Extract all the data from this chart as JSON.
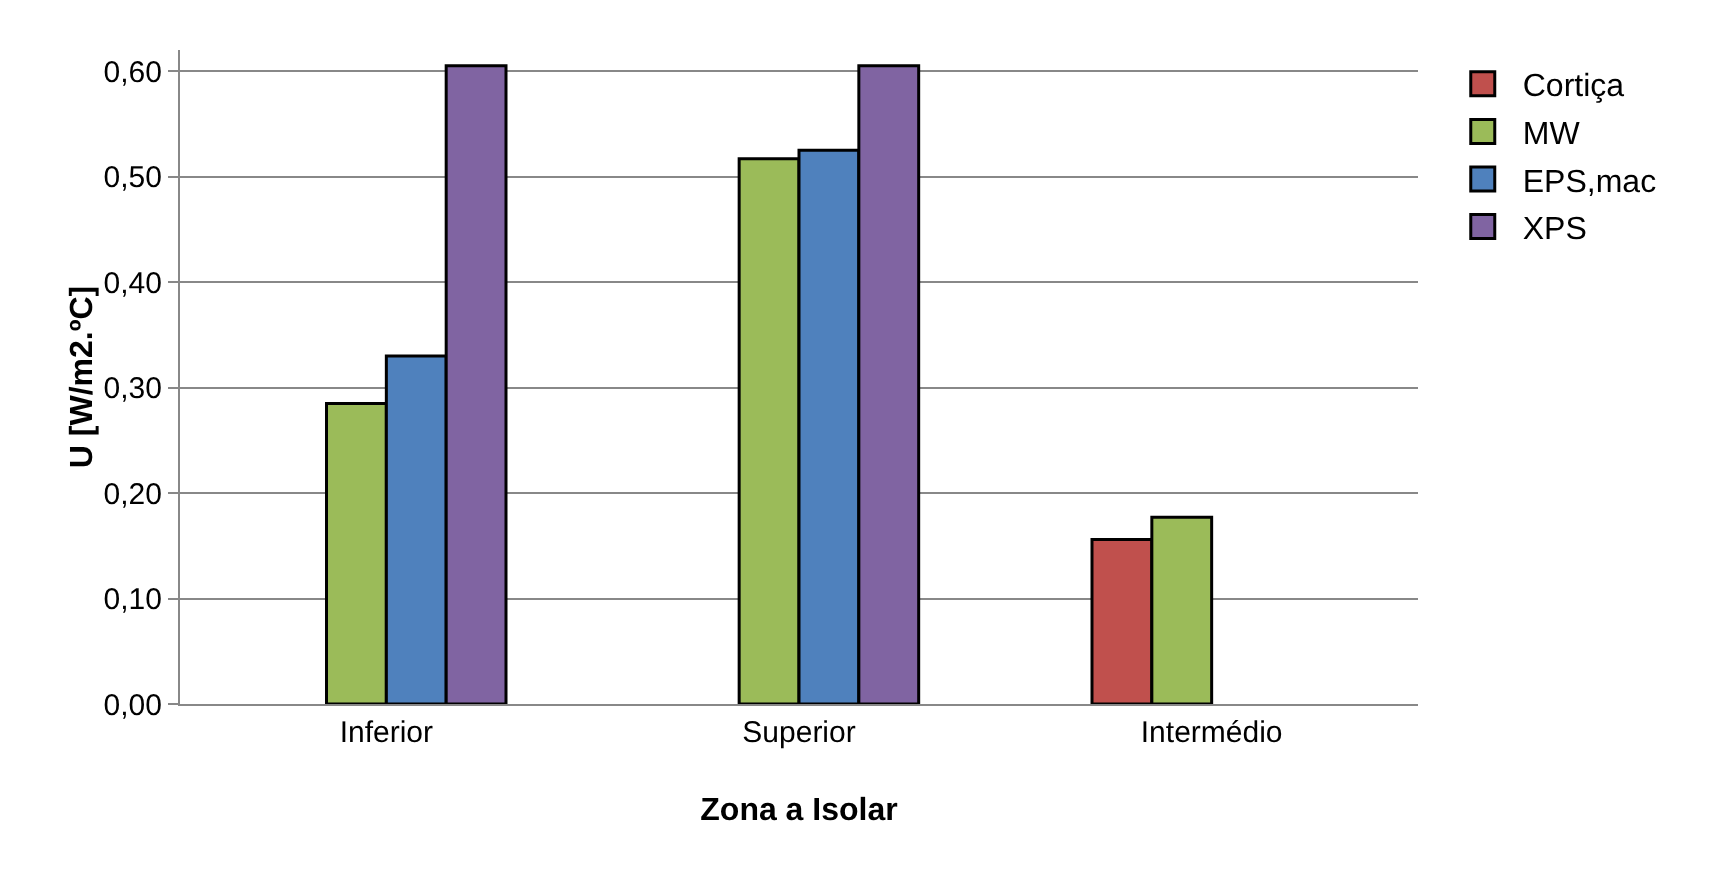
{
  "chart_data": {
    "type": "bar",
    "xlabel": "Zona a Isolar",
    "ylabel": "U [W/m2.ºC]",
    "categories": [
      "Inferior",
      "Superior",
      "Intermédio"
    ],
    "series": [
      {
        "name": "Cortiça",
        "color": "#c0504d",
        "values": [
          null,
          null,
          0.156
        ]
      },
      {
        "name": "MW",
        "color": "#9bbb59",
        "values": [
          0.285,
          0.517,
          0.177
        ]
      },
      {
        "name": "EPS,mac",
        "color": "#4f81bd",
        "values": [
          0.33,
          0.525,
          null
        ]
      },
      {
        "name": "XPS",
        "color": "#8064a2",
        "values": [
          0.605,
          0.605,
          null
        ]
      }
    ],
    "ylim": [
      0,
      0.62
    ],
    "yticks": [
      {
        "value": 0,
        "label": "0,00"
      },
      {
        "value": 0.1,
        "label": "0,10"
      },
      {
        "value": 0.2,
        "label": "0,20"
      },
      {
        "value": 0.3,
        "label": "0,30"
      },
      {
        "value": 0.4,
        "label": "0,40"
      },
      {
        "value": 0.5,
        "label": "0,50"
      },
      {
        "value": 0.6,
        "label": "0,60"
      }
    ],
    "grid": "y",
    "legend": "right"
  }
}
